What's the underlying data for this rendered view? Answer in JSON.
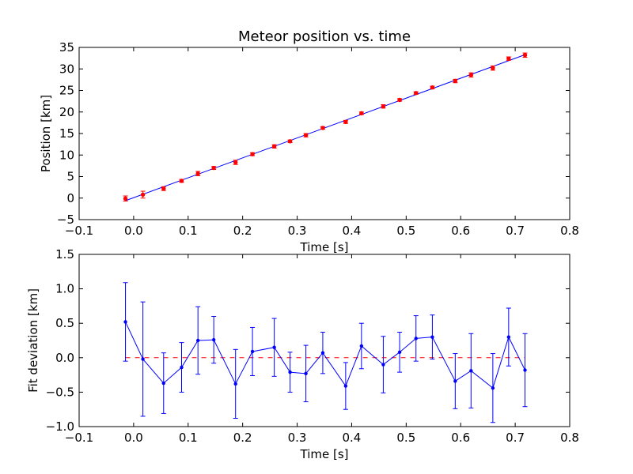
{
  "chart_data": [
    {
      "type": "scatter",
      "title": "Meteor position vs. time",
      "xlabel": "Time [s]",
      "ylabel": "Position [km]",
      "xlim": [
        -0.1,
        0.8
      ],
      "ylim": [
        -5,
        35
      ],
      "xticks": [
        -0.1,
        0.0,
        0.1,
        0.2,
        0.3,
        0.4,
        0.5,
        0.6,
        0.7,
        0.8
      ],
      "yticks": [
        -5,
        0,
        5,
        10,
        15,
        20,
        25,
        30,
        35
      ],
      "xtick_labels": [
        "−0.1",
        "0.0",
        "0.1",
        "0.2",
        "0.3",
        "0.4",
        "0.5",
        "0.6",
        "0.7",
        "0.8"
      ],
      "ytick_labels": [
        "−5",
        "0",
        "5",
        "10",
        "15",
        "20",
        "25",
        "30",
        "35"
      ],
      "grid": false,
      "colors": {
        "points": "#ff0000",
        "fit": "#0000ff"
      },
      "points": {
        "x": [
          -0.015,
          0.017,
          0.055,
          0.088,
          0.118,
          0.147,
          0.187,
          0.218,
          0.258,
          0.287,
          0.316,
          0.347,
          0.389,
          0.418,
          0.458,
          0.488,
          0.518,
          0.548,
          0.59,
          0.619,
          0.659,
          0.688,
          0.718
        ],
        "y": [
          -0.1,
          0.8,
          2.2,
          4.0,
          5.7,
          7.0,
          8.3,
          10.2,
          12.0,
          13.2,
          14.6,
          16.3,
          17.7,
          19.7,
          21.3,
          22.8,
          24.4,
          25.7,
          27.2,
          28.6,
          30.2,
          32.4,
          33.2
        ],
        "yerr": [
          0.6,
          0.8,
          0.45,
          0.35,
          0.5,
          0.35,
          0.5,
          0.35,
          0.4,
          0.3,
          0.4,
          0.3,
          0.35,
          0.3,
          0.4,
          0.3,
          0.3,
          0.3,
          0.4,
          0.5,
          0.5,
          0.4,
          0.5
        ]
      },
      "fit_line": {
        "x": [
          -0.015,
          0.718
        ],
        "y": [
          -0.6,
          33.3
        ]
      }
    },
    {
      "type": "line",
      "title": "",
      "xlabel": "Time [s]",
      "ylabel": "Fit deviation [km]",
      "xlim": [
        -0.1,
        0.8
      ],
      "ylim": [
        -1.0,
        1.5
      ],
      "xticks": [
        -0.1,
        0.0,
        0.1,
        0.2,
        0.3,
        0.4,
        0.5,
        0.6,
        0.7,
        0.8
      ],
      "yticks": [
        -1.0,
        -0.5,
        0.0,
        0.5,
        1.0,
        1.5
      ],
      "xtick_labels": [
        "−0.1",
        "0.0",
        "0.1",
        "0.2",
        "0.3",
        "0.4",
        "0.5",
        "0.6",
        "0.7",
        "0.8"
      ],
      "ytick_labels": [
        "−1.0",
        "−0.5",
        "0.0",
        "0.5",
        "1.0",
        "1.5"
      ],
      "grid": false,
      "colors": {
        "series": "#0000ff",
        "zero_line": "#ff0000"
      },
      "zero_line_y": 0.0,
      "series": {
        "x": [
          -0.015,
          0.017,
          0.055,
          0.088,
          0.118,
          0.147,
          0.187,
          0.218,
          0.258,
          0.287,
          0.316,
          0.347,
          0.389,
          0.418,
          0.458,
          0.488,
          0.518,
          0.548,
          0.59,
          0.619,
          0.659,
          0.688,
          0.718
        ],
        "y": [
          0.52,
          -0.02,
          -0.37,
          -0.14,
          0.25,
          0.26,
          -0.38,
          0.09,
          0.15,
          -0.21,
          -0.23,
          0.07,
          -0.41,
          0.17,
          -0.1,
          0.08,
          0.28,
          0.3,
          -0.34,
          -0.19,
          -0.44,
          0.3,
          -0.18
        ],
        "yerr": [
          0.57,
          0.83,
          0.44,
          0.36,
          0.49,
          0.34,
          0.5,
          0.35,
          0.42,
          0.29,
          0.41,
          0.3,
          0.34,
          0.33,
          0.41,
          0.29,
          0.33,
          0.32,
          0.4,
          0.54,
          0.5,
          0.42,
          0.53
        ]
      }
    }
  ]
}
